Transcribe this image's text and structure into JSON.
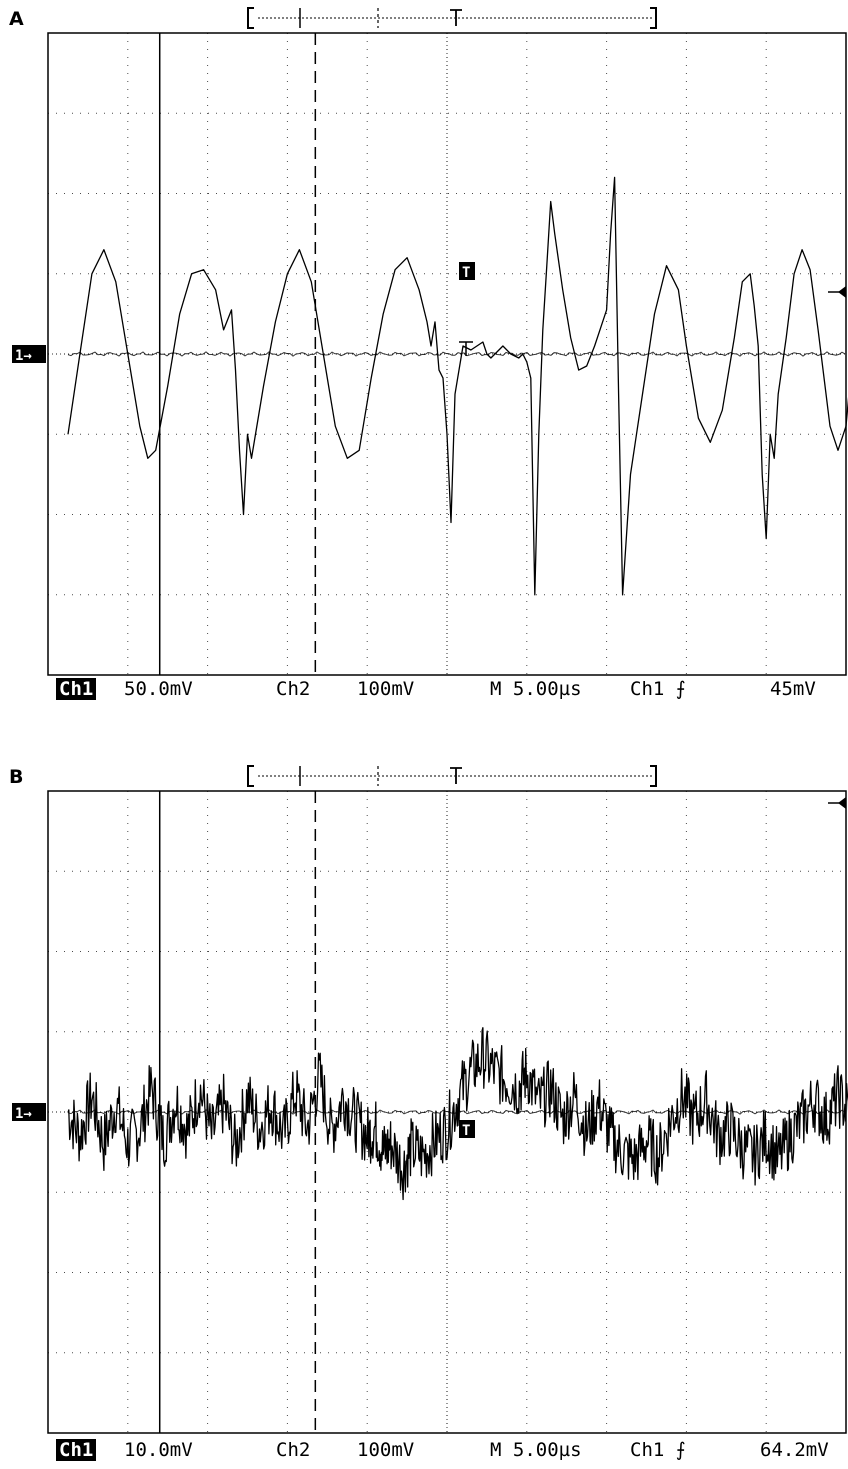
{
  "panels": [
    {
      "label": "A",
      "readout": {
        "ch1_tag": "Ch1",
        "ch1_scale": "50.0mV",
        "ch2_tag": "Ch2",
        "ch2_scale": "100mV",
        "timebase": "M 5.00µs",
        "trigger_src": "Ch1 ⨍",
        "trigger_level": "45mV"
      }
    },
    {
      "label": "B",
      "readout": {
        "ch1_tag": "Ch1",
        "ch1_scale": "10.0mV",
        "ch2_tag": "Ch2",
        "ch2_scale": "100mV",
        "timebase": "M 5.00µs",
        "trigger_src": "Ch1 ⨍",
        "trigger_level": "64.2mV"
      }
    }
  ],
  "chart_data": [
    {
      "type": "line",
      "grid": "on",
      "x_divisions": 10,
      "y_divisions": 8,
      "xlim": [
        0,
        10
      ],
      "ylim": [
        -4,
        4
      ],
      "cursors_div": {
        "solid": 1.4,
        "dashed": 3.35
      },
      "trigger_x_div": 5.0,
      "series": [
        {
          "points": [
            [
              0.25,
              -1.0
            ],
            [
              0.4,
              0.0
            ],
            [
              0.55,
              1.0
            ],
            [
              0.7,
              1.3
            ],
            [
              0.85,
              0.9
            ],
            [
              1.0,
              0.0
            ],
            [
              1.15,
              -0.9
            ],
            [
              1.25,
              -1.3
            ],
            [
              1.35,
              -1.2
            ],
            [
              1.5,
              -0.4
            ],
            [
              1.65,
              0.5
            ],
            [
              1.8,
              1.0
            ],
            [
              1.95,
              1.05
            ],
            [
              2.1,
              0.8
            ],
            [
              2.2,
              0.3
            ],
            [
              2.3,
              0.55
            ],
            [
              2.35,
              -0.2
            ],
            [
              2.4,
              -1.2
            ],
            [
              2.45,
              -2.0
            ],
            [
              2.5,
              -1.0
            ],
            [
              2.55,
              -1.3
            ],
            [
              2.7,
              -0.4
            ],
            [
              2.85,
              0.4
            ],
            [
              3.0,
              1.0
            ],
            [
              3.15,
              1.3
            ],
            [
              3.3,
              0.9
            ],
            [
              3.45,
              0.0
            ],
            [
              3.6,
              -0.9
            ],
            [
              3.75,
              -1.3
            ],
            [
              3.9,
              -1.2
            ],
            [
              4.05,
              -0.3
            ],
            [
              4.2,
              0.5
            ],
            [
              4.35,
              1.05
            ],
            [
              4.5,
              1.2
            ],
            [
              4.65,
              0.8
            ],
            [
              4.75,
              0.4
            ],
            [
              4.8,
              0.1
            ],
            [
              4.85,
              0.4
            ],
            [
              4.9,
              -0.2
            ],
            [
              4.95,
              -0.3
            ],
            [
              5.0,
              -1.0
            ],
            [
              5.05,
              -2.1
            ],
            [
              5.1,
              -0.5
            ],
            [
              5.2,
              0.1
            ],
            [
              5.3,
              0.05
            ],
            [
              5.45,
              0.15
            ],
            [
              5.5,
              0.0
            ],
            [
              5.55,
              -0.05
            ],
            [
              5.6,
              0.0
            ],
            [
              5.7,
              0.1
            ],
            [
              5.8,
              0.0
            ],
            [
              5.9,
              -0.05
            ],
            [
              5.95,
              0.0
            ],
            [
              6.0,
              -0.1
            ],
            [
              6.05,
              -0.3
            ],
            [
              6.1,
              -3.0
            ],
            [
              6.15,
              -1.0
            ],
            [
              6.2,
              0.3
            ],
            [
              6.25,
              1.1
            ],
            [
              6.3,
              1.9
            ],
            [
              6.35,
              1.5
            ],
            [
              6.45,
              0.8
            ],
            [
              6.55,
              0.2
            ],
            [
              6.65,
              -0.2
            ],
            [
              6.75,
              -0.15
            ],
            [
              6.85,
              0.1
            ],
            [
              6.95,
              0.4
            ],
            [
              7.0,
              0.55
            ],
            [
              7.05,
              1.5
            ],
            [
              7.1,
              2.2
            ],
            [
              7.15,
              -0.5
            ],
            [
              7.2,
              -3.0
            ],
            [
              7.3,
              -1.5
            ],
            [
              7.45,
              -0.5
            ],
            [
              7.6,
              0.5
            ],
            [
              7.75,
              1.1
            ],
            [
              7.9,
              0.8
            ],
            [
              8.0,
              0.1
            ],
            [
              8.15,
              -0.8
            ],
            [
              8.3,
              -1.1
            ],
            [
              8.45,
              -0.7
            ],
            [
              8.6,
              0.2
            ],
            [
              8.7,
              0.9
            ],
            [
              8.8,
              1.0
            ],
            [
              8.85,
              0.6
            ],
            [
              8.9,
              0.1
            ],
            [
              8.95,
              -1.5
            ],
            [
              9.0,
              -2.3
            ],
            [
              9.05,
              -1.0
            ],
            [
              9.1,
              -1.3
            ],
            [
              9.15,
              -0.5
            ],
            [
              9.25,
              0.2
            ],
            [
              9.35,
              1.0
            ],
            [
              9.45,
              1.3
            ],
            [
              9.55,
              1.05
            ],
            [
              9.65,
              0.3
            ],
            [
              9.8,
              -0.9
            ],
            [
              9.9,
              -1.2
            ],
            [
              10.0,
              -0.9
            ],
            [
              10.1,
              0.2
            ],
            [
              10.2,
              0.9
            ]
          ]
        }
      ]
    },
    {
      "type": "line",
      "grid": "on",
      "x_divisions": 10,
      "y_divisions": 8,
      "xlim": [
        0,
        10
      ],
      "ylim": [
        -4,
        4
      ],
      "cursors_div": {
        "solid": 1.4,
        "dashed": 3.35
      },
      "trigger_x_div": 5.0,
      "series": [
        {
          "points": [
            [
              0.25,
              0.0
            ],
            [
              0.4,
              -0.3
            ],
            [
              0.55,
              0.2
            ],
            [
              0.7,
              -0.4
            ],
            [
              0.85,
              0.1
            ],
            [
              1.0,
              -0.4
            ],
            [
              1.15,
              -0.2
            ],
            [
              1.3,
              0.3
            ],
            [
              1.45,
              -0.35
            ],
            [
              1.6,
              0.15
            ],
            [
              1.75,
              -0.25
            ],
            [
              1.9,
              0.3
            ],
            [
              2.05,
              -0.3
            ],
            [
              2.2,
              0.1
            ],
            [
              2.35,
              -0.45
            ],
            [
              2.5,
              0.2
            ],
            [
              2.65,
              -0.2
            ],
            [
              2.8,
              0.1
            ],
            [
              2.95,
              -0.3
            ],
            [
              3.1,
              0.25
            ],
            [
              3.25,
              -0.2
            ],
            [
              3.4,
              0.45
            ],
            [
              3.55,
              -0.25
            ],
            [
              3.7,
              0.2
            ],
            [
              3.85,
              -0.1
            ],
            [
              4.0,
              -0.3
            ],
            [
              4.1,
              -0.2
            ],
            [
              4.2,
              -0.5
            ],
            [
              4.3,
              -0.4
            ],
            [
              4.45,
              -0.7
            ],
            [
              4.55,
              -0.45
            ],
            [
              4.7,
              -0.55
            ],
            [
              4.85,
              -0.35
            ],
            [
              5.0,
              -0.2
            ],
            [
              5.15,
              0.2
            ],
            [
              5.3,
              0.5
            ],
            [
              5.45,
              0.7
            ],
            [
              5.6,
              0.5
            ],
            [
              5.75,
              0.4
            ],
            [
              5.9,
              0.3
            ],
            [
              6.0,
              0.5
            ],
            [
              6.15,
              0.1
            ],
            [
              6.3,
              0.3
            ],
            [
              6.45,
              -0.1
            ],
            [
              6.6,
              0.2
            ],
            [
              6.75,
              -0.25
            ],
            [
              6.9,
              0.1
            ],
            [
              7.05,
              -0.3
            ],
            [
              7.2,
              -0.5
            ],
            [
              7.35,
              -0.6
            ],
            [
              7.5,
              -0.35
            ],
            [
              7.65,
              -0.55
            ],
            [
              7.8,
              -0.1
            ],
            [
              7.95,
              0.2
            ],
            [
              8.1,
              -0.1
            ],
            [
              8.25,
              0.15
            ],
            [
              8.4,
              -0.3
            ],
            [
              8.55,
              -0.2
            ],
            [
              8.7,
              -0.45
            ],
            [
              8.85,
              -0.55
            ],
            [
              9.0,
              -0.3
            ],
            [
              9.15,
              -0.6
            ],
            [
              9.3,
              -0.3
            ],
            [
              9.45,
              -0.1
            ],
            [
              9.6,
              0.15
            ],
            [
              9.75,
              -0.1
            ],
            [
              9.9,
              0.2
            ],
            [
              10.05,
              0.0
            ],
            [
              10.2,
              0.15
            ]
          ],
          "noise_amplitude_div": 0.3
        }
      ]
    }
  ]
}
